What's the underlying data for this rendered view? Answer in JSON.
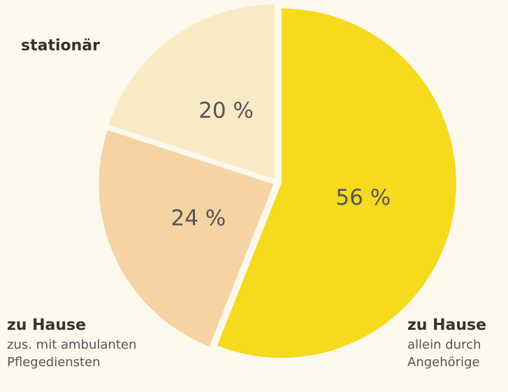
{
  "chart_data": {
    "type": "pie",
    "categories": [
      "zu Hause",
      "zu Hause",
      "stationär"
    ],
    "category_notes": [
      [
        "allein durch",
        "Angehörige"
      ],
      [
        "zus. mit ambulanten",
        "Pflegediensten"
      ],
      []
    ],
    "values": [
      56,
      24,
      20
    ],
    "value_labels": [
      "56 %",
      "24 %",
      "20 %"
    ],
    "colors": [
      "#f5da1e",
      "#f5d3a2",
      "#f8eac4"
    ],
    "start": "top",
    "direction": "clockwise"
  }
}
